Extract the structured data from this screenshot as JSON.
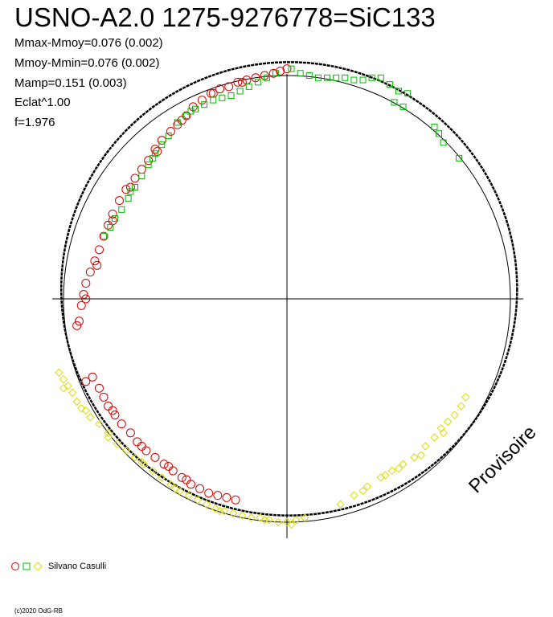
{
  "chart_data": {
    "type": "scatter",
    "title": "USNO-A2.0 1275-9276778=SiC133",
    "stats": [
      "Mmax-Mmoy=0.076 (0.002)",
      "Mmoy-Mmin=0.076 (0.002)",
      "Mamp=0.151 (0.003)",
      "Eclat^1.00",
      "f=1.976"
    ],
    "xlim": [
      -1.05,
      1.05
    ],
    "ylim": [
      -1.05,
      1.05
    ],
    "reference_circle_radius": 1.0,
    "model_curve": {
      "rx": 1.02,
      "ry": 1.015,
      "cx": 0.01,
      "cy": 0.045,
      "color": "#000000"
    },
    "series": [
      {
        "marker": "circle",
        "color": "#dd0000",
        "points": [
          [
            0.0,
            1.03
          ],
          [
            -0.03,
            1.02
          ],
          [
            -0.06,
            1.01
          ],
          [
            -0.1,
            1.0
          ],
          [
            -0.14,
            0.99
          ],
          [
            -0.18,
            0.98
          ],
          [
            -0.22,
            0.97
          ],
          [
            -0.26,
            0.95
          ],
          [
            -0.3,
            0.94
          ],
          [
            -0.34,
            0.92
          ],
          [
            -0.38,
            0.89
          ],
          [
            -0.42,
            0.86
          ],
          [
            -0.45,
            0.82
          ],
          [
            -0.49,
            0.78
          ],
          [
            -0.52,
            0.75
          ],
          [
            -0.56,
            0.71
          ],
          [
            -0.59,
            0.67
          ],
          [
            -0.62,
            0.62
          ],
          [
            -0.65,
            0.58
          ],
          [
            -0.68,
            0.54
          ],
          [
            -0.72,
            0.49
          ],
          [
            -0.75,
            0.44
          ],
          [
            -0.78,
            0.38
          ],
          [
            -0.8,
            0.33
          ],
          [
            -0.82,
            0.28
          ],
          [
            -0.84,
            0.22
          ],
          [
            -0.86,
            0.17
          ],
          [
            -0.88,
            0.12
          ],
          [
            -0.9,
            0.07
          ],
          [
            -0.91,
            0.02
          ],
          [
            -0.92,
            -0.03
          ],
          [
            -0.93,
            -0.1
          ],
          [
            -0.94,
            -0.12
          ],
          [
            -0.9,
            0.0
          ],
          [
            -0.85,
            0.15
          ],
          [
            -0.78,
            0.35
          ],
          [
            -0.7,
            0.5
          ],
          [
            -0.58,
            0.66
          ],
          [
            -0.47,
            0.8
          ],
          [
            -0.33,
            0.92
          ],
          [
            -0.2,
            0.97
          ],
          [
            -0.87,
            -0.35
          ],
          [
            -0.84,
            -0.4
          ],
          [
            -0.82,
            -0.44
          ],
          [
            -0.8,
            -0.48
          ],
          [
            -0.77,
            -0.52
          ],
          [
            -0.74,
            -0.56
          ],
          [
            -0.7,
            -0.6
          ],
          [
            -0.67,
            -0.64
          ],
          [
            -0.63,
            -0.68
          ],
          [
            -0.59,
            -0.71
          ],
          [
            -0.55,
            -0.74
          ],
          [
            -0.51,
            -0.77
          ],
          [
            -0.47,
            -0.8
          ],
          [
            -0.43,
            -0.83
          ],
          [
            -0.39,
            -0.85
          ],
          [
            -0.35,
            -0.87
          ],
          [
            -0.31,
            -0.88
          ],
          [
            -0.27,
            -0.89
          ],
          [
            -0.23,
            -0.9
          ],
          [
            -0.9,
            -0.37
          ],
          [
            -0.78,
            -0.5
          ],
          [
            -0.65,
            -0.66
          ],
          [
            -0.53,
            -0.75
          ],
          [
            -0.45,
            -0.81
          ]
        ]
      },
      {
        "marker": "square",
        "color": "#00bb00",
        "points": [
          [
            0.02,
            1.03
          ],
          [
            0.06,
            1.01
          ],
          [
            0.1,
            1.0
          ],
          [
            0.14,
            0.99
          ],
          [
            0.18,
            0.99
          ],
          [
            0.22,
            0.99
          ],
          [
            0.26,
            0.99
          ],
          [
            0.3,
            0.98
          ],
          [
            0.34,
            0.98
          ],
          [
            0.38,
            0.99
          ],
          [
            0.42,
            0.99
          ],
          [
            0.46,
            0.96
          ],
          [
            0.5,
            0.93
          ],
          [
            0.54,
            0.92
          ],
          [
            0.48,
            0.88
          ],
          [
            0.52,
            0.86
          ],
          [
            0.66,
            0.77
          ],
          [
            0.68,
            0.74
          ],
          [
            0.7,
            0.7
          ],
          [
            0.77,
            0.63
          ],
          [
            -0.05,
            1.01
          ],
          [
            -0.09,
            0.99
          ],
          [
            -0.13,
            0.97
          ],
          [
            -0.17,
            0.95
          ],
          [
            -0.21,
            0.93
          ],
          [
            -0.25,
            0.91
          ],
          [
            -0.29,
            0.9
          ],
          [
            -0.33,
            0.89
          ],
          [
            -0.37,
            0.87
          ],
          [
            -0.41,
            0.85
          ],
          [
            -0.45,
            0.82
          ],
          [
            -0.49,
            0.79
          ],
          [
            -0.53,
            0.73
          ],
          [
            -0.56,
            0.69
          ],
          [
            -0.59,
            0.65
          ],
          [
            -0.62,
            0.6
          ],
          [
            -0.65,
            0.55
          ],
          [
            -0.68,
            0.5
          ],
          [
            -0.71,
            0.45
          ],
          [
            -0.74,
            0.4
          ],
          [
            -0.77,
            0.36
          ],
          [
            -0.79,
            0.32
          ],
          [
            -0.82,
            0.28
          ],
          [
            -0.6,
            0.63
          ],
          [
            -0.7,
            0.48
          ],
          [
            -0.43,
            0.84
          ]
        ]
      },
      {
        "marker": "diamond",
        "color": "#dddd00",
        "points": [
          [
            -1.02,
            -0.33
          ],
          [
            -1.0,
            -0.36
          ],
          [
            -0.98,
            -0.39
          ],
          [
            -0.96,
            -0.42
          ],
          [
            -0.94,
            -0.46
          ],
          [
            -0.92,
            -0.49
          ],
          [
            -0.88,
            -0.53
          ],
          [
            -0.84,
            -0.56
          ],
          [
            -0.8,
            -0.6
          ],
          [
            -0.76,
            -0.65
          ],
          [
            -0.72,
            -0.68
          ],
          [
            -0.68,
            -0.71
          ],
          [
            -0.64,
            -0.74
          ],
          [
            -0.6,
            -0.77
          ],
          [
            -0.56,
            -0.8
          ],
          [
            -0.52,
            -0.83
          ],
          [
            -0.48,
            -0.86
          ],
          [
            -0.44,
            -0.88
          ],
          [
            -0.4,
            -0.9
          ],
          [
            -0.36,
            -0.92
          ],
          [
            -0.32,
            -0.94
          ],
          [
            -0.28,
            -0.95
          ],
          [
            -0.24,
            -0.96
          ],
          [
            -0.2,
            -0.97
          ],
          [
            -0.16,
            -0.98
          ],
          [
            -0.12,
            -0.98
          ],
          [
            -0.08,
            -0.99
          ],
          [
            -0.04,
            -1.0
          ],
          [
            0.0,
            -1.0
          ],
          [
            0.04,
            -0.99
          ],
          [
            0.08,
            -0.98
          ],
          [
            0.24,
            -0.92
          ],
          [
            0.3,
            -0.88
          ],
          [
            0.36,
            -0.84
          ],
          [
            0.42,
            -0.8
          ],
          [
            0.47,
            -0.77
          ],
          [
            0.52,
            -0.74
          ],
          [
            0.57,
            -0.71
          ],
          [
            0.62,
            -0.66
          ],
          [
            0.66,
            -0.62
          ],
          [
            0.69,
            -0.58
          ],
          [
            0.72,
            -0.55
          ],
          [
            0.75,
            -0.52
          ],
          [
            0.78,
            -0.48
          ],
          [
            0.8,
            -0.44
          ],
          [
            0.7,
            -0.6
          ],
          [
            0.6,
            -0.7
          ],
          [
            0.5,
            -0.76
          ],
          [
            0.44,
            -0.79
          ],
          [
            0.34,
            -0.86
          ],
          [
            -1.0,
            -0.4
          ],
          [
            -0.9,
            -0.5
          ],
          [
            -0.8,
            -0.62
          ],
          [
            -0.65,
            -0.73
          ],
          [
            -0.5,
            -0.85
          ],
          [
            -0.3,
            -0.95
          ],
          [
            -0.1,
            -0.99
          ],
          [
            0.02,
            -1.01
          ]
        ]
      }
    ]
  },
  "legend": {
    "author": "Silvano Casulli"
  },
  "footer": {
    "copyright": "(c)2020 OdG-RB"
  },
  "watermark": "Provisoire"
}
